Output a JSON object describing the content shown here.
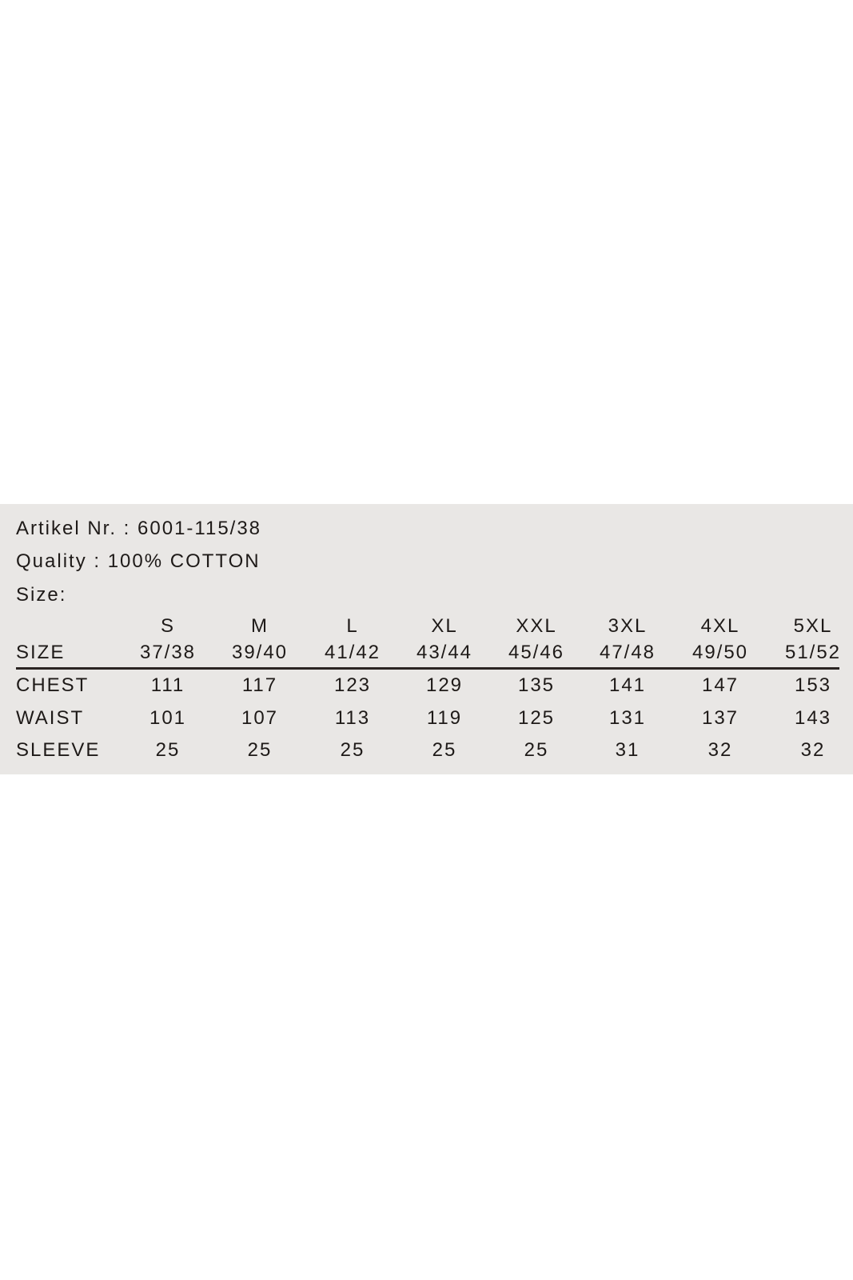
{
  "info": {
    "article": "Artikel Nr. : 6001-115/38",
    "quality": "Quality : 100% COTTON",
    "size_label": "Size:"
  },
  "table": {
    "header_label": "SIZE",
    "sizes": [
      "S",
      "M",
      "L",
      "XL",
      "XXL",
      "3XL",
      "4XL",
      "5XL"
    ],
    "ranges": [
      "37/38",
      "39/40",
      "41/42",
      "43/44",
      "45/46",
      "47/48",
      "49/50",
      "51/52"
    ],
    "rows": [
      {
        "label": "CHEST",
        "values": [
          "111",
          "117",
          "123",
          "129",
          "135",
          "141",
          "147",
          "153"
        ]
      },
      {
        "label": "WAIST",
        "values": [
          "101",
          "107",
          "113",
          "119",
          "125",
          "131",
          "137",
          "143"
        ]
      },
      {
        "label": "SLEEVE",
        "values": [
          "25",
          "25",
          "25",
          "25",
          "25",
          "31",
          "32",
          "32"
        ]
      }
    ]
  },
  "colors": {
    "panel": "#e9e7e5",
    "text": "#1e1a18"
  }
}
